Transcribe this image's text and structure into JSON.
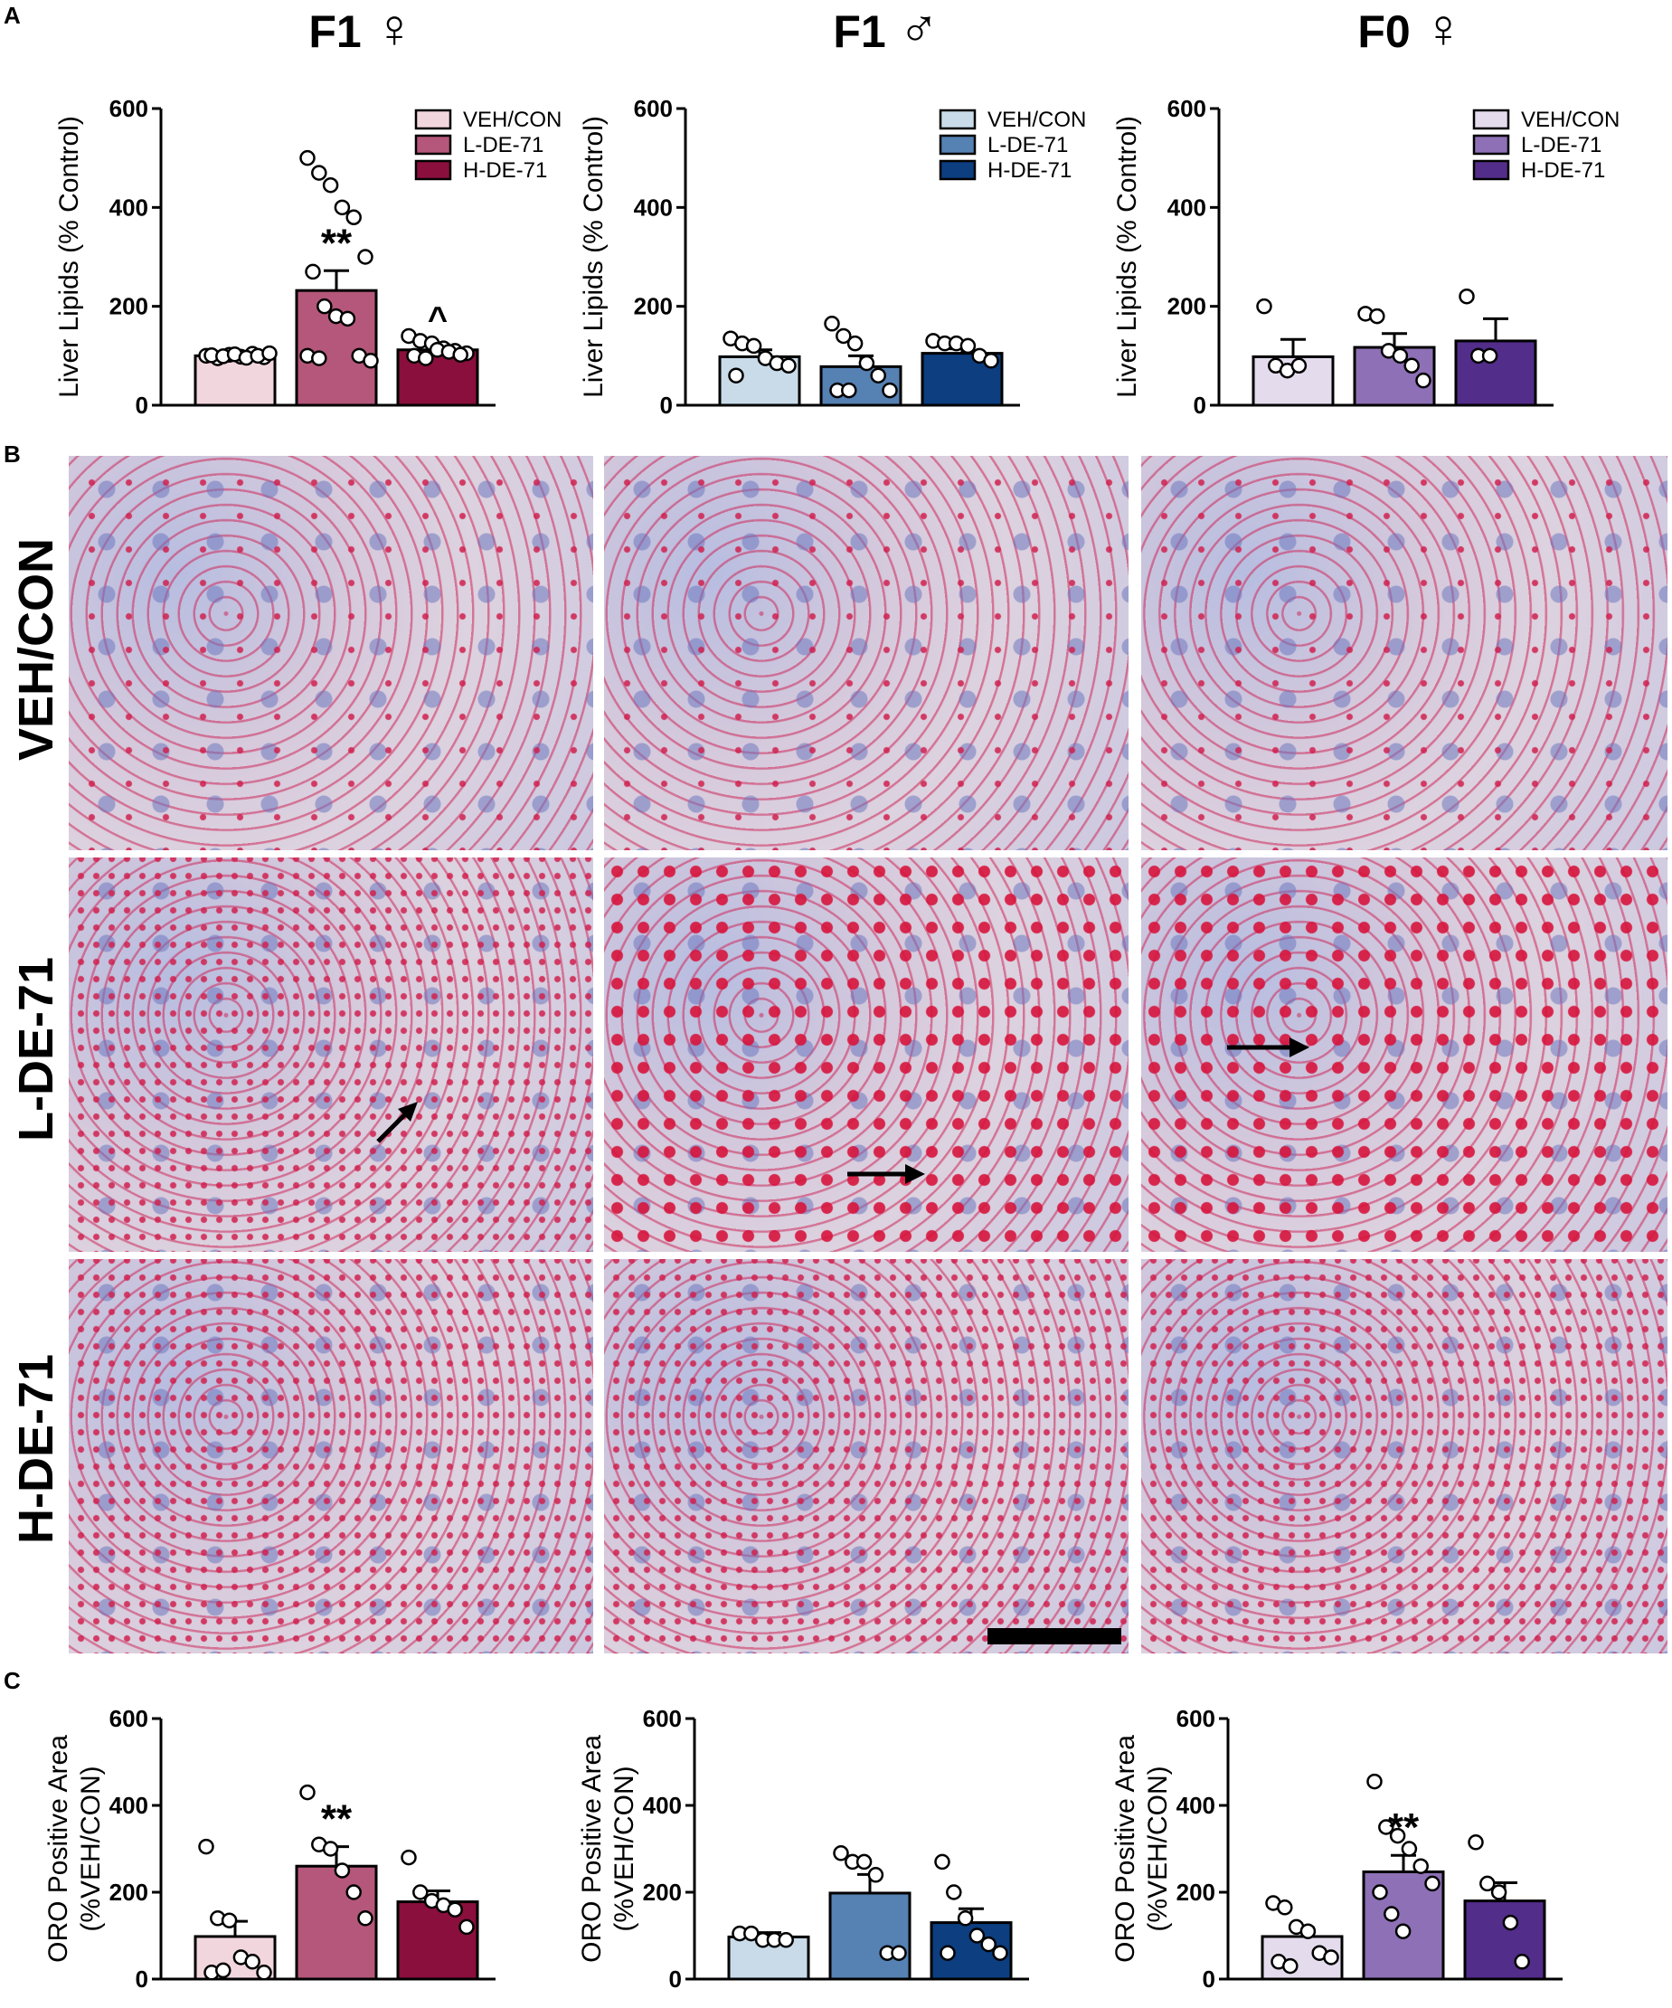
{
  "panels": {
    "a": "A",
    "b": "B",
    "c": "C"
  },
  "columns": [
    {
      "title": "F1",
      "symbol": "♀",
      "sex": "female"
    },
    {
      "title": "F1",
      "symbol": "♂",
      "sex": "male"
    },
    {
      "title": "F0",
      "symbol": "♀",
      "sex": "female"
    }
  ],
  "rows": [
    "VEH/CON",
    "L-DE-71",
    "H-DE-71"
  ],
  "micrograph_stain_density": [
    [
      1,
      1,
      1
    ],
    [
      2,
      3,
      3
    ],
    [
      2,
      2,
      2
    ]
  ],
  "colors": {
    "f1_female": [
      "#f2d6de",
      "#b5577a",
      "#8a0f3d"
    ],
    "f1_male": [
      "#c9dbe9",
      "#5581b3",
      "#0c3e80"
    ],
    "f0_female": [
      "#e4dced",
      "#8d70b5",
      "#522d8a"
    ],
    "axis": "#000000"
  },
  "chart_data": [
    {
      "id": "A-F1-female",
      "type": "bar",
      "ylabel": "Liver Lipids (% Control)",
      "ylim": [
        0,
        600
      ],
      "yticks": [
        0,
        200,
        400,
        600
      ],
      "legend": [
        "VEH/CON",
        "L-DE-71",
        "H-DE-71"
      ],
      "legend_position": "top-right",
      "series": [
        {
          "name": "VEH/CON",
          "mean": 100,
          "sem": 5,
          "significance": "",
          "points": [
            100,
            95,
            102,
            98,
            104,
            97,
            101,
            99,
            103,
            96,
            100,
            105
          ]
        },
        {
          "name": "L-DE-71",
          "mean": 232,
          "sem": 40,
          "significance": "**",
          "points": [
            500,
            470,
            445,
            400,
            380,
            300,
            270,
            200,
            180,
            175,
            100,
            90,
            100,
            95
          ]
        },
        {
          "name": "H-DE-71",
          "mean": 112,
          "sem": 10,
          "significance": "^",
          "points": [
            140,
            130,
            125,
            115,
            110,
            105,
            100,
            95,
            112,
            108,
            102
          ]
        }
      ]
    },
    {
      "id": "A-F1-male",
      "type": "bar",
      "ylabel": "Liver Lipids (% Control)",
      "ylim": [
        0,
        600
      ],
      "yticks": [
        0,
        200,
        400,
        600
      ],
      "legend": [
        "VEH/CON",
        "L-DE-71",
        "H-DE-71"
      ],
      "legend_position": "top-right",
      "series": [
        {
          "name": "VEH/CON",
          "mean": 98,
          "sem": 14,
          "significance": "",
          "points": [
            135,
            125,
            120,
            95,
            85,
            80,
            60
          ]
        },
        {
          "name": "L-DE-71",
          "mean": 78,
          "sem": 22,
          "significance": "",
          "points": [
            165,
            140,
            125,
            85,
            60,
            30,
            30,
            30
          ]
        },
        {
          "name": "H-DE-71",
          "mean": 105,
          "sem": 9,
          "significance": "",
          "points": [
            130,
            125,
            125,
            120,
            100,
            90
          ]
        }
      ]
    },
    {
      "id": "A-F0-female",
      "type": "bar",
      "ylabel": "Liver Lipids (% Control)",
      "ylim": [
        0,
        600
      ],
      "yticks": [
        0,
        200,
        400,
        600
      ],
      "legend": [
        "VEH/CON",
        "L-DE-71",
        "H-DE-71"
      ],
      "legend_position": "top-right",
      "series": [
        {
          "name": "VEH/CON",
          "mean": 98,
          "sem": 35,
          "significance": "",
          "points": [
            200,
            80,
            70,
            80
          ]
        },
        {
          "name": "L-DE-71",
          "mean": 117,
          "sem": 28,
          "significance": "",
          "points": [
            185,
            180,
            110,
            100,
            80,
            50
          ]
        },
        {
          "name": "H-DE-71",
          "mean": 130,
          "sem": 45,
          "significance": "",
          "points": [
            220,
            100,
            100
          ]
        }
      ]
    },
    {
      "id": "C-F1-female",
      "type": "bar",
      "ylabel": "ORO Positive Area (%VEH/CON)",
      "ylim": [
        0,
        600
      ],
      "yticks": [
        0,
        200,
        400,
        600
      ],
      "series": [
        {
          "name": "VEH/CON",
          "mean": 98,
          "sem": 35,
          "significance": "",
          "points": [
            305,
            140,
            135,
            50,
            40,
            15,
            15,
            20
          ]
        },
        {
          "name": "L-DE-71",
          "mean": 260,
          "sem": 45,
          "significance": "**",
          "points": [
            430,
            310,
            300,
            250,
            200,
            140
          ]
        },
        {
          "name": "H-DE-71",
          "mean": 178,
          "sem": 25,
          "significance": "",
          "points": [
            280,
            200,
            180,
            170,
            160,
            120
          ]
        }
      ]
    },
    {
      "id": "C-F1-male",
      "type": "bar",
      "ylabel": "ORO Positive Area (%VEH/CON)",
      "ylim": [
        0,
        600
      ],
      "yticks": [
        0,
        200,
        400,
        600
      ],
      "series": [
        {
          "name": "VEH/CON",
          "mean": 97,
          "sem": 10,
          "significance": "",
          "points": [
            105,
            105,
            90,
            90,
            90
          ]
        },
        {
          "name": "L-DE-71",
          "mean": 198,
          "sem": 43,
          "significance": "",
          "points": [
            290,
            270,
            270,
            240,
            60,
            60
          ]
        },
        {
          "name": "H-DE-71",
          "mean": 130,
          "sem": 32,
          "significance": "",
          "points": [
            270,
            200,
            140,
            100,
            80,
            60,
            60
          ]
        }
      ]
    },
    {
      "id": "C-F0-female",
      "type": "bar",
      "ylabel": "ORO Positive Area (%VEH/CON)",
      "ylim": [
        0,
        600
      ],
      "yticks": [
        0,
        200,
        400,
        600
      ],
      "series": [
        {
          "name": "VEH/CON",
          "mean": 98,
          "sem": 20,
          "significance": "",
          "points": [
            175,
            165,
            120,
            110,
            60,
            50,
            40,
            30
          ]
        },
        {
          "name": "L-DE-71",
          "mean": 247,
          "sem": 38,
          "significance": "**",
          "points": [
            455,
            350,
            330,
            300,
            260,
            220,
            200,
            150,
            110
          ]
        },
        {
          "name": "H-DE-71",
          "mean": 180,
          "sem": 42,
          "significance": "",
          "points": [
            315,
            220,
            200,
            130,
            40
          ]
        }
      ]
    }
  ]
}
